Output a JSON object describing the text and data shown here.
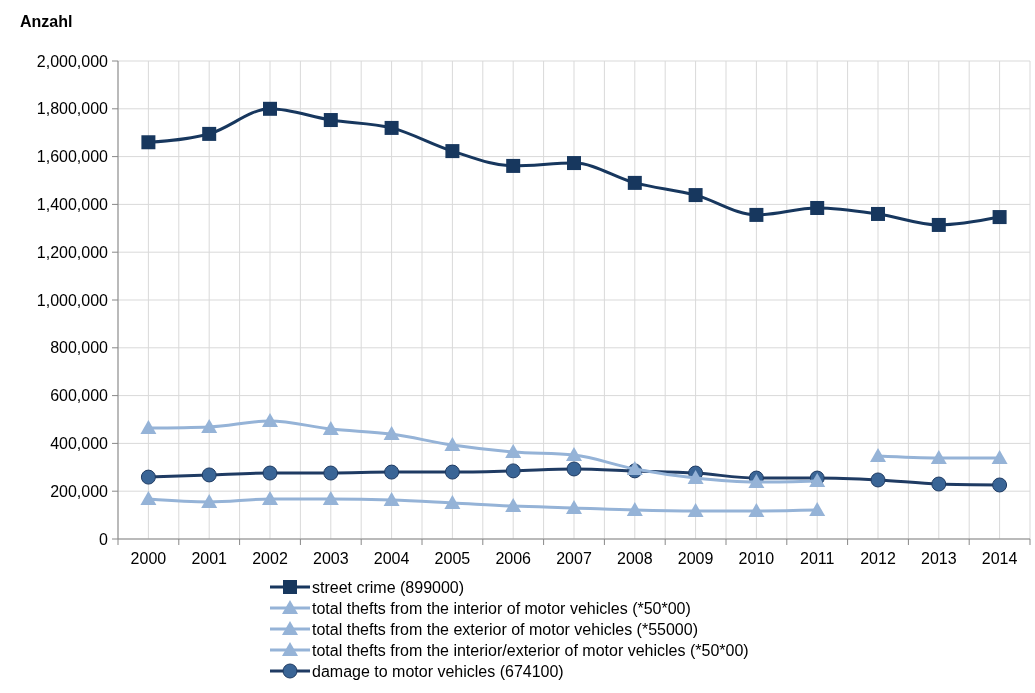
{
  "chart_data": {
    "type": "line",
    "ylabel": "Anzahl",
    "categories": [
      "2000",
      "2001",
      "2002",
      "2003",
      "2004",
      "2005",
      "2006",
      "2007",
      "2008",
      "2009",
      "2010",
      "2011",
      "2012",
      "2013",
      "2014"
    ],
    "series": [
      {
        "name": "street crime (899000)",
        "color": "#17375e",
        "marker": "square",
        "values": [
          1660000,
          1695000,
          1800000,
          1753000,
          1720000,
          1623000,
          1561000,
          1573000,
          1490000,
          1439000,
          1356000,
          1385000,
          1360000,
          1314000,
          1347000
        ]
      },
      {
        "name": "total thefts from the interior of motor vehicles (*50*00)",
        "color": "#95b3d7",
        "marker": "triangle",
        "values": [
          464000,
          469000,
          494000,
          460000,
          439000,
          393000,
          364000,
          351000,
          293000,
          255000,
          238000,
          243000,
          null,
          null,
          null
        ]
      },
      {
        "name": "total thefts from the exterior of motor vehicles (*55000)",
        "color": "#95b3d7",
        "marker": "triangle",
        "values": [
          167000,
          155000,
          167000,
          167000,
          163000,
          151000,
          138000,
          130000,
          121000,
          117000,
          117000,
          121000,
          null,
          null,
          null
        ]
      },
      {
        "name": "total thefts from the interior/exterior of motor vehicles (*50*00)",
        "color": "#95b3d7",
        "marker": "triangle",
        "values": [
          null,
          null,
          null,
          null,
          null,
          null,
          null,
          null,
          null,
          null,
          null,
          null,
          347000,
          339000,
          339000
        ]
      },
      {
        "name": "damage to motor vehicles (674100)",
        "color": "#1f3b63",
        "marker": "circle",
        "values": [
          259000,
          268000,
          276000,
          276000,
          280000,
          280000,
          285000,
          293000,
          285000,
          276000,
          255000,
          255000,
          247000,
          230000,
          226000
        ]
      }
    ],
    "ylim": [
      0,
      2000000
    ],
    "yticks": [
      {
        "value": 0,
        "label": "0"
      },
      {
        "value": 200000,
        "label": "200,000"
      },
      {
        "value": 400000,
        "label": "400,000"
      },
      {
        "value": 600000,
        "label": "600,000"
      },
      {
        "value": 800000,
        "label": "800,000"
      },
      {
        "value": 1000000,
        "label": "1,000,000"
      },
      {
        "value": 1200000,
        "label": "1,200,000"
      },
      {
        "value": 1400000,
        "label": "1,400,000"
      },
      {
        "value": 1600000,
        "label": "1,600,000"
      },
      {
        "value": 1800000,
        "label": "1,800,000"
      },
      {
        "value": 2000000,
        "label": "2,000,000"
      }
    ],
    "grid": true,
    "legend": "bottom",
    "line_style": "solid"
  }
}
